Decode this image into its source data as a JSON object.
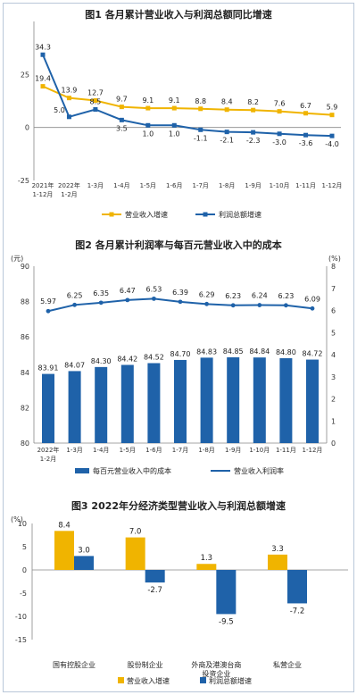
{
  "chart_data": [
    {
      "type": "line",
      "title": "图1  各月累计营业收入与利润总额同比增速",
      "categories": [
        [
          "2021年",
          "1-12月"
        ],
        [
          "2022年",
          "1-2月"
        ],
        [
          "1-3月"
        ],
        [
          "1-4月"
        ],
        [
          "1-5月"
        ],
        [
          "1-6月"
        ],
        [
          "1-7月"
        ],
        [
          "1-8月"
        ],
        [
          "1-9月"
        ],
        [
          "1-10月"
        ],
        [
          "1-11月"
        ],
        [
          "1-12月"
        ]
      ],
      "yticks": [
        "-25",
        "0",
        "25"
      ],
      "ylim": [
        -25,
        50
      ],
      "series": [
        {
          "name": "营业收入增速",
          "color": "#f0b400",
          "values": [
            19.4,
            13.9,
            12.7,
            9.7,
            9.1,
            9.1,
            8.8,
            8.4,
            8.2,
            7.6,
            6.7,
            5.9
          ],
          "labels": [
            "19.4",
            "13.9",
            "12.7",
            "9.7",
            "9.1",
            "9.1",
            "8.8",
            "8.4",
            "8.2",
            "7.6",
            "6.7",
            "5.9"
          ]
        },
        {
          "name": "利润总额增速",
          "color": "#1f62a9",
          "values": [
            34.3,
            5.0,
            8.5,
            3.5,
            1.0,
            1.0,
            -1.1,
            -2.1,
            -2.3,
            -3.0,
            -3.6,
            -4.0
          ],
          "labels": [
            "34.3",
            "5.0",
            "8.5",
            "3.5",
            "1.0",
            "1.0",
            "-1.1",
            "-2.1",
            "-2.3",
            "-3.0",
            "-3.6",
            "-4.0"
          ]
        }
      ],
      "legend": "bottom"
    },
    {
      "type": "bar",
      "title": "图2  各月累计利润率与每百元营业收入中的成本",
      "categories": [
        [
          "2022年",
          "1-2月"
        ],
        [
          "1-3月"
        ],
        [
          "1-4月"
        ],
        [
          "1-5月"
        ],
        [
          "1-6月"
        ],
        [
          "1-7月"
        ],
        [
          "1-8月"
        ],
        [
          "1-9月"
        ],
        [
          "1-10月"
        ],
        [
          "1-11月"
        ],
        [
          "1-12月"
        ]
      ],
      "ylabel_left": "(元)",
      "ylabel_right": "(%)",
      "ylim_left": [
        80,
        90
      ],
      "ylim_right": [
        0,
        8
      ],
      "yticks_left": [
        "80",
        "82",
        "84",
        "86",
        "88",
        "90"
      ],
      "yticks_right": [
        "0",
        "1",
        "2",
        "3",
        "4",
        "5",
        "6",
        "7",
        "8"
      ],
      "series": [
        {
          "name": "每百元营业收入中的成本",
          "type": "bar",
          "axis": "left",
          "color": "#1f62a9",
          "values": [
            83.91,
            84.07,
            84.3,
            84.42,
            84.52,
            84.7,
            84.83,
            84.85,
            84.84,
            84.8,
            84.72
          ],
          "labels": [
            "83.91",
            "84.07",
            "84.30",
            "84.42",
            "84.52",
            "84.70",
            "84.83",
            "84.85",
            "84.84",
            "84.80",
            "84.72"
          ]
        },
        {
          "name": "营业收入利润率",
          "type": "line",
          "axis": "right",
          "color": "#1f62a9",
          "values": [
            5.97,
            6.25,
            6.35,
            6.47,
            6.53,
            6.39,
            6.29,
            6.23,
            6.24,
            6.23,
            6.09
          ],
          "labels": [
            "5.97",
            "6.25",
            "6.35",
            "6.47",
            "6.53",
            "6.39",
            "6.29",
            "6.23",
            "6.24",
            "6.23",
            "6.09"
          ]
        }
      ],
      "legend": "bottom"
    },
    {
      "type": "bar",
      "title": "图3  2022年分经济类型营业收入与利润总额增速",
      "ylabel": "(%)",
      "ylim": [
        -15,
        10
      ],
      "yticks": [
        "-15",
        "-10",
        "-5",
        "0",
        "5",
        "10"
      ],
      "categories": [
        [
          "国有控股企业"
        ],
        [
          "股份制企业"
        ],
        [
          "外商及港澳台商",
          "投资企业"
        ],
        [
          "私营企业"
        ]
      ],
      "series": [
        {
          "name": "营业收入增速",
          "color": "#f0b400",
          "values": [
            8.4,
            7.0,
            1.3,
            3.3
          ],
          "labels": [
            "8.4",
            "7.0",
            "1.3",
            "3.3"
          ]
        },
        {
          "name": "利润总额增速",
          "color": "#1f62a9",
          "values": [
            3.0,
            -2.7,
            -9.5,
            -7.2
          ],
          "labels": [
            "3.0",
            "-2.7",
            "-9.5",
            "-7.2"
          ]
        }
      ],
      "legend": "bottom"
    }
  ]
}
